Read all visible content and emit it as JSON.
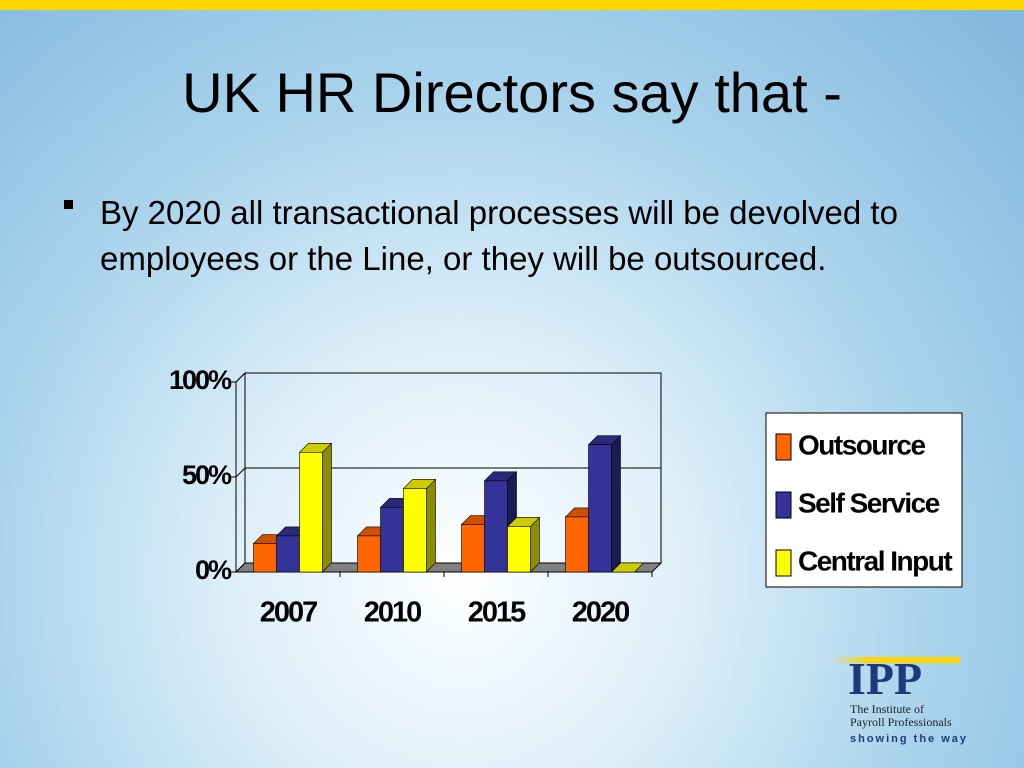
{
  "header": {
    "title": "UK HR Directors say that -"
  },
  "bullets": [
    "By 2020 all transactional processes will be devolved to employees or the Line, or they will be outsourced."
  ],
  "chart_data": {
    "type": "bar3d",
    "categories": [
      "2007",
      "2010",
      "2015",
      "2020"
    ],
    "series": [
      {
        "name": "Outsource",
        "color": "#ff6600",
        "values": [
          15,
          19,
          25,
          29
        ]
      },
      {
        "name": "Self Service",
        "color": "#333399",
        "values": [
          19,
          34,
          48,
          67
        ]
      },
      {
        "name": "Central Input",
        "color": "#ffff00",
        "values": [
          63,
          44,
          24,
          0
        ]
      }
    ],
    "ylim": [
      0,
      100
    ],
    "yticks": [
      {
        "value": 0,
        "label": "0%"
      },
      {
        "value": 50,
        "label": "50%"
      },
      {
        "value": 100,
        "label": "100%"
      }
    ],
    "grid": true,
    "legend": "right"
  },
  "logo": {
    "name": "IPP",
    "line1": "The Institute of",
    "line2": "Payroll Professionals",
    "tagline": "showing the way"
  }
}
